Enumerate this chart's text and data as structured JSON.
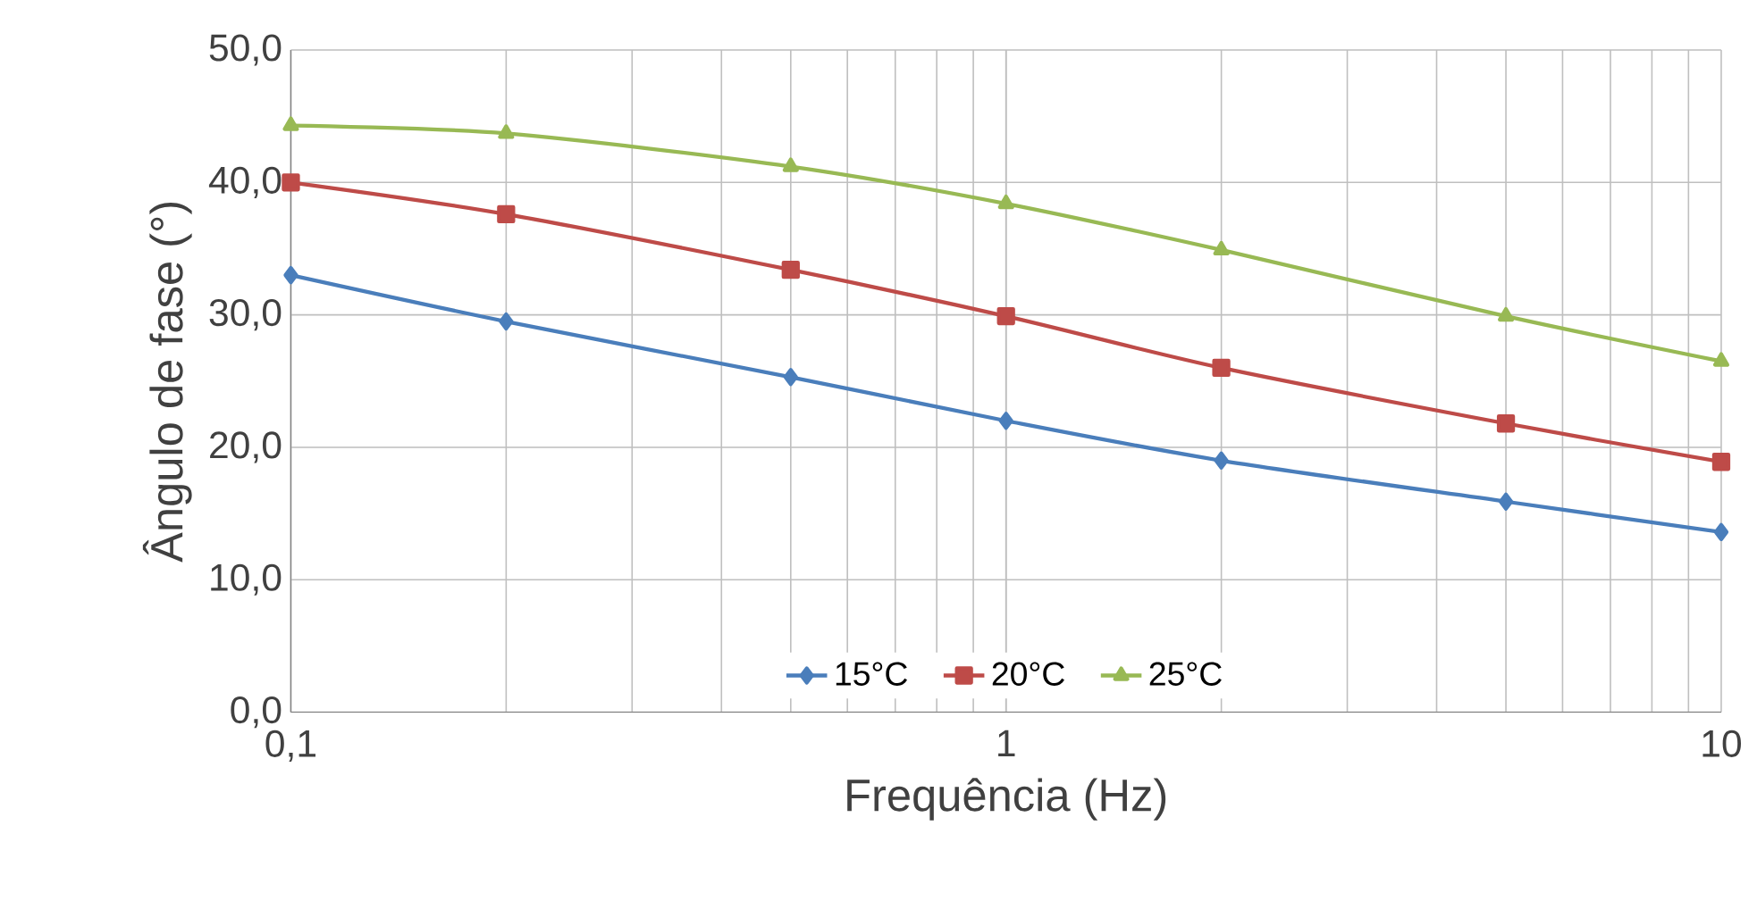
{
  "chart_data": {
    "type": "line",
    "xlabel": "Frequência (Hz)",
    "ylabel": "Ângulo de fase (°)",
    "x": [
      0.1,
      0.2,
      0.5,
      1,
      2,
      5,
      10
    ],
    "series": [
      {
        "name": "15°C",
        "color": "#4a7ebb",
        "marker": "diamond",
        "values": [
          33.0,
          29.5,
          25.3,
          22.0,
          19.0,
          15.9,
          13.6
        ]
      },
      {
        "name": "20°C",
        "color": "#be4b48",
        "marker": "square",
        "values": [
          40.0,
          37.6,
          33.4,
          29.9,
          26.0,
          21.8,
          18.9
        ]
      },
      {
        "name": "25°C",
        "color": "#98b954",
        "marker": "triangle",
        "values": [
          44.3,
          43.7,
          41.2,
          38.4,
          34.9,
          29.9,
          26.5
        ]
      }
    ],
    "log": "x",
    "xlim": [
      0.1,
      10
    ],
    "xticks": [
      {
        "value": 0.1,
        "label": "0,1"
      },
      1,
      10
    ],
    "ylim": [
      0,
      50
    ],
    "yticks": [
      {
        "value": 0,
        "label": "0,0"
      },
      {
        "value": 10,
        "label": "10,0"
      },
      {
        "value": 20,
        "label": "20,0"
      },
      {
        "value": 30,
        "label": "30,0"
      },
      {
        "value": 40,
        "label": "40,0"
      },
      {
        "value": 50,
        "label": "50,0"
      }
    ],
    "grid": true,
    "legend": "bottom",
    "line_style": "solid"
  }
}
